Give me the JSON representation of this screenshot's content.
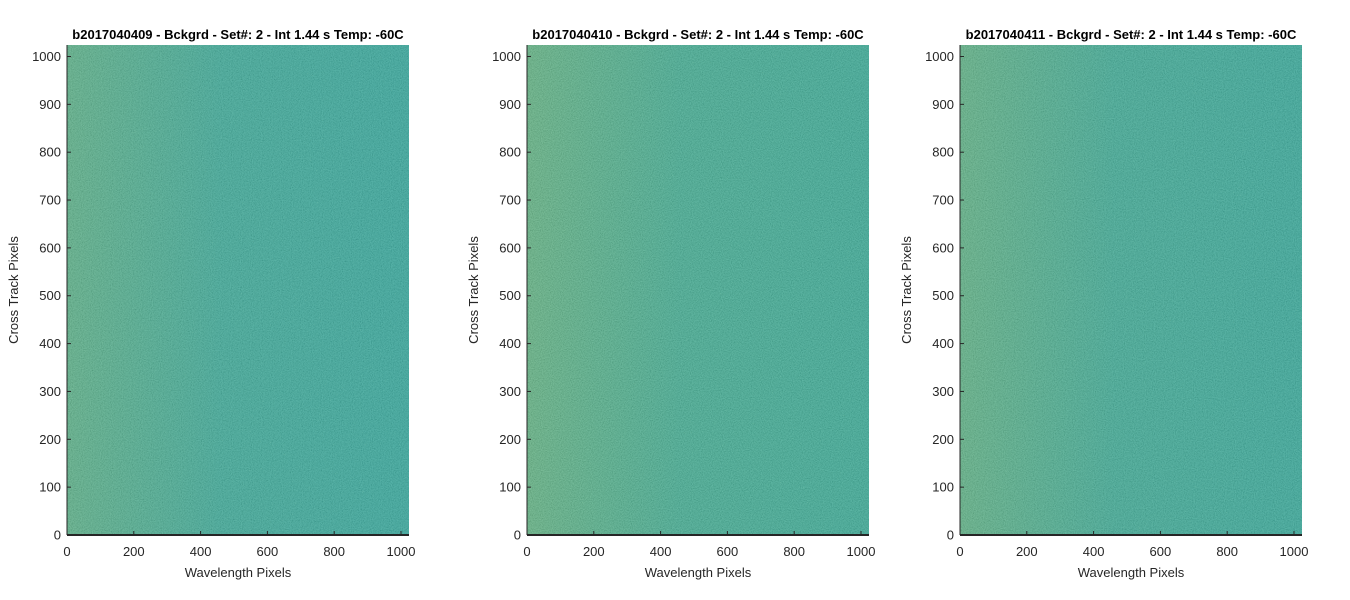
{
  "chart_data": [
    {
      "type": "heatmap",
      "title": "b2017040409 - Bckgrd - Set#: 2 - Int 1.44 s Temp: -60C",
      "xlabel": "Wavelength Pixels",
      "ylabel": "Cross Track Pixels",
      "xlim": [
        0,
        1024
      ],
      "ylim": [
        0,
        1024
      ],
      "xticks": [
        0,
        200,
        400,
        600,
        800,
        1000
      ],
      "yticks": [
        0,
        100,
        200,
        300,
        400,
        500,
        600,
        700,
        800,
        900,
        1000
      ],
      "colormap": "parula",
      "base_color": "#2fb0a3",
      "noise_colors": [
        "#6cbf7a",
        "#3fb597",
        "#24aaa9"
      ],
      "left_edge_color": "#7dc27a"
    },
    {
      "type": "heatmap",
      "title": "b2017040410 - Bckgrd - Set#: 2 - Int 1.44 s Temp: -60C",
      "xlabel": "Wavelength Pixels",
      "ylabel": "Cross Track Pixels",
      "xlim": [
        0,
        1024
      ],
      "ylim": [
        0,
        1024
      ],
      "xticks": [
        0,
        200,
        400,
        600,
        800,
        1000
      ],
      "yticks": [
        0,
        100,
        200,
        300,
        400,
        500,
        600,
        700,
        800,
        900,
        1000
      ],
      "colormap": "parula",
      "base_color": "#35b39c",
      "noise_colors": [
        "#72c177",
        "#45b794",
        "#28aca6"
      ],
      "left_edge_color": "#86c476"
    },
    {
      "type": "heatmap",
      "title": "b2017040411 - Bckgrd - Set#: 2 - Int 1.44 s Temp: -60C",
      "xlabel": "Wavelength Pixels",
      "ylabel": "Cross Track Pixels",
      "xlim": [
        0,
        1024
      ],
      "ylim": [
        0,
        1024
      ],
      "xticks": [
        0,
        200,
        400,
        600,
        800,
        1000
      ],
      "yticks": [
        0,
        100,
        200,
        300,
        400,
        500,
        600,
        700,
        800,
        900,
        1000
      ],
      "colormap": "parula",
      "base_color": "#31b1a0",
      "noise_colors": [
        "#6fc078",
        "#42b696",
        "#26aba8"
      ],
      "left_edge_color": "#82c377"
    }
  ]
}
